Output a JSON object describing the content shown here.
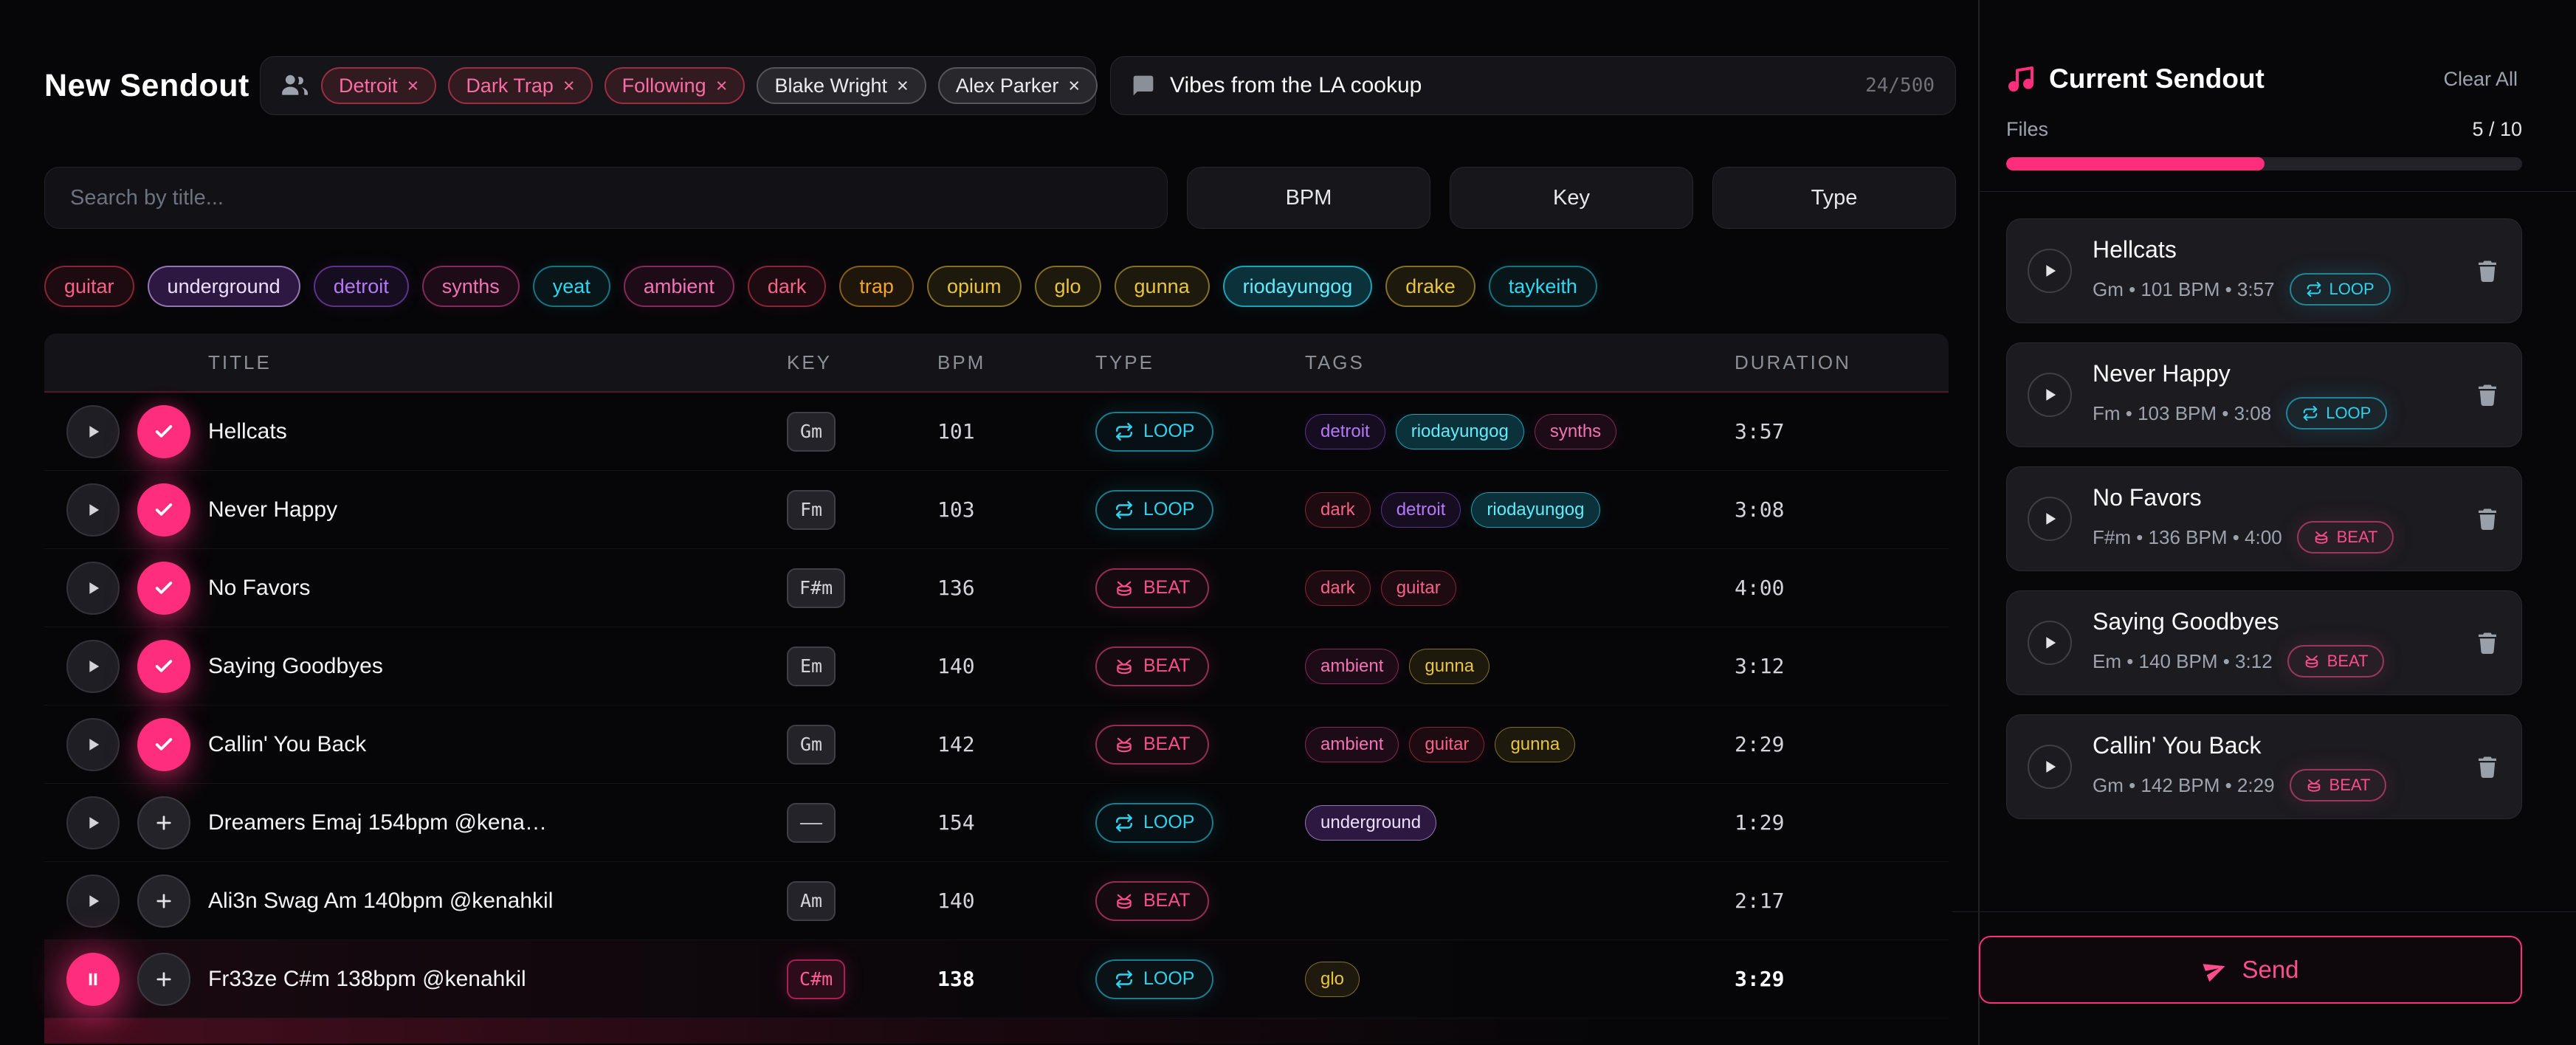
{
  "header": {
    "title": "New Sendout",
    "recipients": {
      "chips": [
        {
          "label": "Detroit",
          "style": "tag"
        },
        {
          "label": "Dark Trap",
          "style": "tag"
        },
        {
          "label": "Following",
          "style": "tag"
        },
        {
          "label": "Blake Wright",
          "style": "user"
        },
        {
          "label": "Alex Parker",
          "style": "user"
        }
      ]
    },
    "message": {
      "value": "Vibes from the LA cookup",
      "counter": "24/500"
    }
  },
  "filters": {
    "search_placeholder": "Search by title...",
    "buttons": [
      "BPM",
      "Key",
      "Type"
    ]
  },
  "tags": [
    {
      "label": "guitar",
      "color": "rose",
      "active": false
    },
    {
      "label": "underground",
      "color": "violet",
      "active": true
    },
    {
      "label": "detroit",
      "color": "purple",
      "active": false
    },
    {
      "label": "synths",
      "color": "pink",
      "active": false
    },
    {
      "label": "yeat",
      "color": "cyan",
      "active": false
    },
    {
      "label": "ambient",
      "color": "pink",
      "active": false
    },
    {
      "label": "dark",
      "color": "rose",
      "active": false
    },
    {
      "label": "trap",
      "color": "amber",
      "active": false
    },
    {
      "label": "opium",
      "color": "yellow",
      "active": false
    },
    {
      "label": "glo",
      "color": "yellow",
      "active": false
    },
    {
      "label": "gunna",
      "color": "yellow",
      "active": false
    },
    {
      "label": "riodayungog",
      "color": "cyan",
      "active": true
    },
    {
      "label": "drake",
      "color": "yellow",
      "active": false
    },
    {
      "label": "taykeith",
      "color": "cyan",
      "active": false
    }
  ],
  "table": {
    "columns": [
      "TITLE",
      "KEY",
      "BPM",
      "TYPE",
      "TAGS",
      "DURATION"
    ],
    "rows": [
      {
        "title": "Hellcats",
        "key": "Gm",
        "bpm": "101",
        "type": "LOOP",
        "duration": "3:57",
        "state": "added",
        "tags": [
          {
            "label": "detroit",
            "color": "purple",
            "active": false
          },
          {
            "label": "riodayungog",
            "color": "cyan",
            "active": true
          },
          {
            "label": "synths",
            "color": "pink",
            "active": false
          }
        ]
      },
      {
        "title": "Never Happy",
        "key": "Fm",
        "bpm": "103",
        "type": "LOOP",
        "duration": "3:08",
        "state": "added",
        "tags": [
          {
            "label": "dark",
            "color": "rose",
            "active": false
          },
          {
            "label": "detroit",
            "color": "purple",
            "active": false
          },
          {
            "label": "riodayungog",
            "color": "cyan",
            "active": true
          }
        ]
      },
      {
        "title": "No Favors",
        "key": "F#m",
        "bpm": "136",
        "type": "BEAT",
        "duration": "4:00",
        "state": "added",
        "tags": [
          {
            "label": "dark",
            "color": "rose",
            "active": false
          },
          {
            "label": "guitar",
            "color": "rose",
            "active": false
          }
        ]
      },
      {
        "title": "Saying Goodbyes",
        "key": "Em",
        "bpm": "140",
        "type": "BEAT",
        "duration": "3:12",
        "state": "added",
        "tags": [
          {
            "label": "ambient",
            "color": "pink",
            "active": false
          },
          {
            "label": "gunna",
            "color": "yellow",
            "active": false
          }
        ]
      },
      {
        "title": "Callin' You Back",
        "key": "Gm",
        "bpm": "142",
        "type": "BEAT",
        "duration": "2:29",
        "state": "added",
        "tags": [
          {
            "label": "ambient",
            "color": "pink",
            "active": false
          },
          {
            "label": "guitar",
            "color": "rose",
            "active": false
          },
          {
            "label": "gunna",
            "color": "yellow",
            "active": false
          }
        ]
      },
      {
        "title": "Dreamers Emaj 154bpm @kena…",
        "key": "––",
        "bpm": "154",
        "type": "LOOP",
        "duration": "1:29",
        "state": "default",
        "tags": [
          {
            "label": "underground",
            "color": "violet",
            "active": true
          }
        ]
      },
      {
        "title": "Ali3n Swag Am 140bpm @kenahkil",
        "key": "Am",
        "bpm": "140",
        "type": "BEAT",
        "duration": "2:17",
        "state": "default",
        "tags": []
      },
      {
        "title": "Fr33ze C#m 138bpm @kenahkil",
        "key": "C#m",
        "bpm": "138",
        "type": "LOOP",
        "duration": "3:29",
        "state": "playing",
        "tags": [
          {
            "label": "glo",
            "color": "yellow",
            "active": false
          }
        ]
      }
    ]
  },
  "sidebar": {
    "title": "Current Sendout",
    "clear_all": "Clear All",
    "files_label": "Files",
    "files_count": "5 / 10",
    "progress_pct": 50,
    "items": [
      {
        "title": "Hellcats",
        "meta": "Gm • 101 BPM • 3:57",
        "type": "LOOP"
      },
      {
        "title": "Never Happy",
        "meta": "Fm • 103 BPM • 3:08",
        "type": "LOOP"
      },
      {
        "title": "No Favors",
        "meta": "F#m • 136 BPM • 4:00",
        "type": "BEAT"
      },
      {
        "title": "Saying Goodbyes",
        "meta": "Em • 140 BPM • 3:12",
        "type": "BEAT"
      },
      {
        "title": "Callin' You Back",
        "meta": "Gm • 142 BPM • 2:29",
        "type": "BEAT"
      }
    ],
    "send_label": "Send"
  },
  "colors": {
    "accent": "#ff2e7c",
    "loop": "#2ed3ee",
    "beat": "#fb4d8a"
  }
}
